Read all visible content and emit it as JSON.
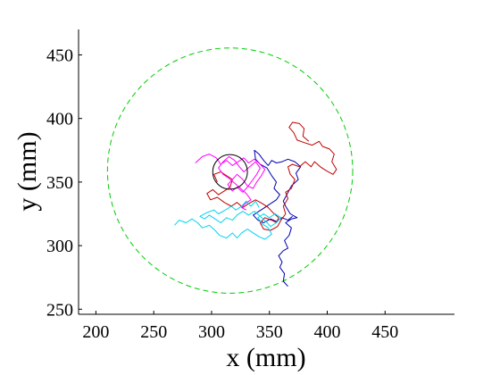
{
  "chart_data": {
    "type": "line",
    "title": "",
    "xlabel": "x (mm)",
    "ylabel": "y (mm)",
    "xlim": [
      185,
      510
    ],
    "ylim": [
      246,
      470
    ],
    "x_ticks": [
      200,
      250,
      300,
      350,
      400,
      450
    ],
    "y_ticks": [
      250,
      300,
      350,
      400,
      450
    ],
    "x_tick_labels": [
      "200",
      "250",
      "300",
      "350",
      "400",
      "450"
    ],
    "y_tick_labels": [
      "250",
      "300",
      "350",
      "400",
      "450"
    ],
    "grid": false,
    "legend": "none",
    "arena_circle": {
      "center": [
        316,
        359
      ],
      "radius": 106,
      "color": "#00cc00",
      "style": "dashed"
    },
    "target_circle": {
      "center": [
        316,
        358
      ],
      "radius": 15,
      "color": "#000000",
      "style": "solid"
    },
    "series": [
      {
        "color": "#0000b0",
        "points": [
          [
            366,
            268
          ],
          [
            362,
            272
          ],
          [
            363,
            278
          ],
          [
            359,
            283
          ],
          [
            361,
            287
          ],
          [
            358,
            292
          ],
          [
            362,
            296
          ],
          [
            366,
            298
          ],
          [
            363,
            304
          ],
          [
            367,
            308
          ],
          [
            369,
            314
          ],
          [
            364,
            318
          ],
          [
            369,
            321
          ],
          [
            374,
            322
          ],
          [
            368,
            325
          ],
          [
            364,
            331
          ],
          [
            362,
            335
          ],
          [
            365,
            340
          ],
          [
            369,
            347
          ],
          [
            375,
            352
          ],
          [
            373,
            357
          ],
          [
            377,
            362
          ],
          [
            372,
            366
          ],
          [
            366,
            368
          ],
          [
            361,
            366
          ],
          [
            356,
            365
          ],
          [
            352,
            367
          ],
          [
            349,
            363
          ],
          [
            345,
            367
          ],
          [
            341,
            372
          ],
          [
            337,
            375
          ],
          [
            338,
            368
          ],
          [
            342,
            364
          ],
          [
            348,
            361
          ],
          [
            352,
            355
          ],
          [
            356,
            350
          ],
          [
            354,
            345
          ],
          [
            359,
            340
          ],
          [
            356,
            336
          ],
          [
            351,
            333
          ],
          [
            346,
            330
          ],
          [
            341,
            327
          ],
          [
            336,
            324
          ],
          [
            340,
            320
          ],
          [
            345,
            318
          ],
          [
            351,
            321
          ],
          [
            356,
            319
          ],
          [
            361,
            322
          ],
          [
            366,
            320
          ],
          [
            370,
            323
          ]
        ]
      },
      {
        "color": "#c00000",
        "points": [
          [
            305,
            350
          ],
          [
            302,
            356
          ],
          [
            308,
            358
          ],
          [
            313,
            355
          ],
          [
            318,
            352
          ],
          [
            316,
            346
          ],
          [
            311,
            343
          ],
          [
            306,
            340
          ],
          [
            301,
            344
          ],
          [
            296,
            341
          ],
          [
            299,
            336
          ],
          [
            305,
            338
          ],
          [
            311,
            334
          ],
          [
            317,
            331
          ],
          [
            322,
            334
          ],
          [
            327,
            330
          ],
          [
            332,
            333
          ],
          [
            338,
            336
          ],
          [
            344,
            333
          ],
          [
            349,
            330
          ],
          [
            353,
            326
          ],
          [
            358,
            322
          ],
          [
            356,
            318
          ],
          [
            352,
            320
          ],
          [
            346,
            322
          ],
          [
            342,
            318
          ],
          [
            345,
            313
          ],
          [
            351,
            312
          ],
          [
            357,
            315
          ],
          [
            360,
            320
          ],
          [
            364,
            325
          ],
          [
            362,
            331
          ],
          [
            366,
            337
          ],
          [
            364,
            342
          ],
          [
            369,
            345
          ],
          [
            372,
            352
          ],
          [
            368,
            356
          ],
          [
            366,
            362
          ],
          [
            370,
            364
          ],
          [
            376,
            362
          ],
          [
            381,
            366
          ],
          [
            386,
            362
          ],
          [
            389,
            366
          ],
          [
            394,
            362
          ],
          [
            399,
            359
          ],
          [
            405,
            356
          ],
          [
            408,
            360
          ],
          [
            404,
            366
          ],
          [
            406,
            372
          ],
          [
            402,
            376
          ],
          [
            396,
            378
          ],
          [
            393,
            382
          ],
          [
            387,
            379
          ],
          [
            380,
            381
          ],
          [
            374,
            383
          ],
          [
            371,
            389
          ],
          [
            367,
            393
          ],
          [
            370,
            397
          ],
          [
            376,
            396
          ],
          [
            380,
            392
          ],
          [
            379,
            386
          ],
          [
            384,
            382
          ]
        ]
      },
      {
        "color": "#ff00ff",
        "points": [
          [
            286,
            365
          ],
          [
            292,
            370
          ],
          [
            298,
            372
          ],
          [
            304,
            369
          ],
          [
            308,
            364
          ],
          [
            313,
            367
          ],
          [
            318,
            363
          ],
          [
            323,
            366
          ],
          [
            328,
            369
          ],
          [
            332,
            365
          ],
          [
            337,
            368
          ],
          [
            342,
            364
          ],
          [
            346,
            360
          ],
          [
            343,
            355
          ],
          [
            339,
            350
          ],
          [
            336,
            345
          ],
          [
            331,
            347
          ],
          [
            327,
            352
          ],
          [
            322,
            356
          ],
          [
            318,
            352
          ],
          [
            314,
            348
          ],
          [
            318,
            343
          ],
          [
            322,
            346
          ],
          [
            327,
            342
          ],
          [
            331,
            346
          ],
          [
            335,
            351
          ],
          [
            339,
            356
          ],
          [
            342,
            361
          ],
          [
            338,
            366
          ],
          [
            333,
            362
          ],
          [
            328,
            358
          ],
          [
            324,
            362
          ],
          [
            320,
            367
          ],
          [
            315,
            370
          ],
          [
            310,
            366
          ],
          [
            306,
            361
          ],
          [
            310,
            356
          ],
          [
            315,
            353
          ],
          [
            320,
            349
          ],
          [
            325,
            345
          ],
          [
            330,
            341
          ],
          [
            334,
            336
          ],
          [
            329,
            333
          ],
          [
            326,
            330
          ],
          [
            330,
            328
          ]
        ]
      },
      {
        "color": "#00d4ee",
        "points": [
          [
            268,
            316
          ],
          [
            272,
            320
          ],
          [
            278,
            318
          ],
          [
            283,
            321
          ],
          [
            288,
            318
          ],
          [
            292,
            314
          ],
          [
            298,
            316
          ],
          [
            303,
            312
          ],
          [
            307,
            308
          ],
          [
            313,
            306
          ],
          [
            318,
            310
          ],
          [
            322,
            306
          ],
          [
            326,
            310
          ],
          [
            331,
            313
          ],
          [
            336,
            310
          ],
          [
            341,
            307
          ],
          [
            346,
            305
          ],
          [
            352,
            309
          ],
          [
            349,
            314
          ],
          [
            344,
            317
          ],
          [
            340,
            322
          ],
          [
            345,
            325
          ],
          [
            350,
            322
          ],
          [
            355,
            325
          ],
          [
            360,
            322
          ],
          [
            356,
            318
          ],
          [
            351,
            315
          ],
          [
            347,
            319
          ],
          [
            342,
            323
          ],
          [
            337,
            327
          ],
          [
            332,
            324
          ],
          [
            327,
            327
          ],
          [
            322,
            324
          ],
          [
            318,
            320
          ],
          [
            313,
            322
          ],
          [
            308,
            318
          ],
          [
            303,
            321
          ],
          [
            298,
            324
          ],
          [
            294,
            321
          ],
          [
            290,
            323
          ],
          [
            296,
            326
          ],
          [
            302,
            328
          ],
          [
            306,
            325
          ],
          [
            312,
            328
          ],
          [
            317,
            331
          ],
          [
            321,
            328
          ],
          [
            326,
            331
          ],
          [
            330,
            335
          ],
          [
            334,
            331
          ],
          [
            338,
            335
          ],
          [
            341,
            330
          ]
        ]
      }
    ]
  }
}
